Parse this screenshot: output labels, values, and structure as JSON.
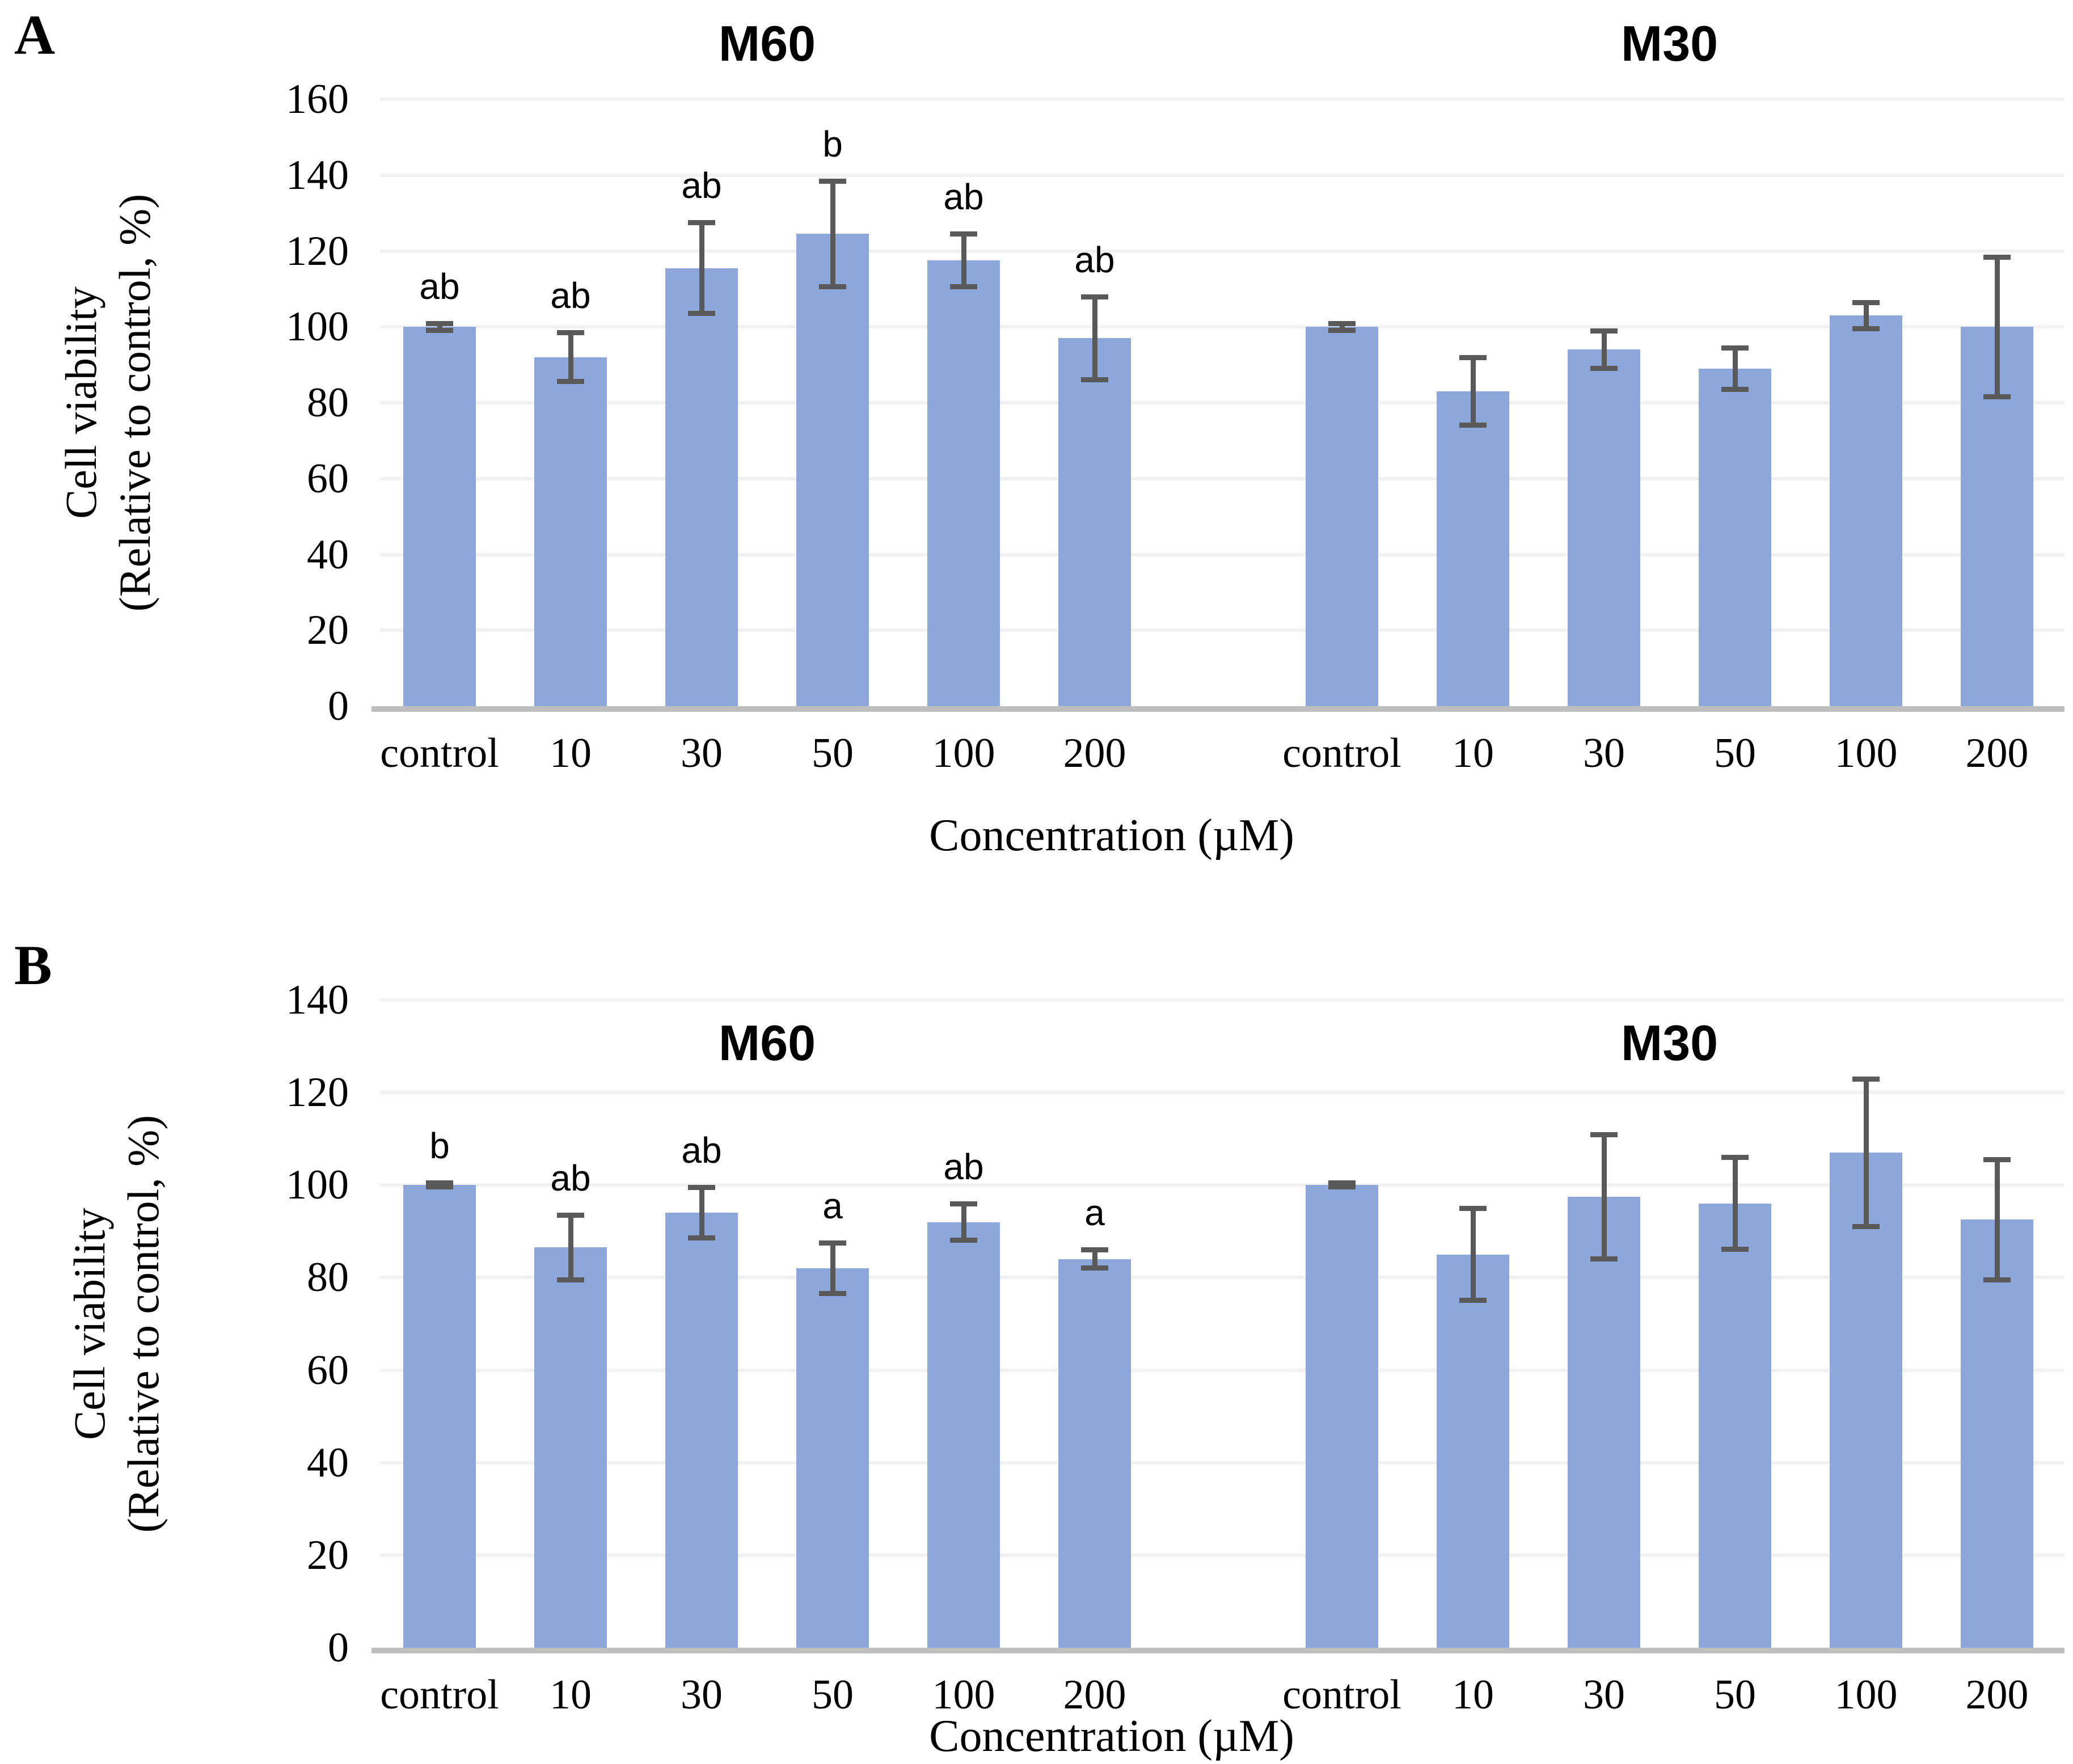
{
  "colors": {
    "bar": "#8DA7DB",
    "error_bar": "#595959",
    "gridline": "#F1F1F1",
    "axis_line": "#BFBFBF",
    "text": "#000000"
  },
  "chart_data": [
    {
      "type": "bar",
      "panel_label": "A",
      "ylabel_line1": "Cell viability",
      "ylabel_line2": "(Relative to control, %)",
      "xlabel": "Concentration (µM)",
      "ylim": [
        0,
        160
      ],
      "yticks": [
        0,
        20,
        40,
        60,
        80,
        100,
        120,
        140,
        160
      ],
      "grid": true,
      "categories": [
        "control",
        "10",
        "30",
        "50",
        "100",
        "200"
      ],
      "series": [
        {
          "name": "M60",
          "values": [
            100,
            92,
            115.5,
            124.5,
            117.5,
            97
          ],
          "errors": [
            1,
            6.5,
            12,
            14,
            7,
            11
          ],
          "letters": [
            "ab",
            "ab",
            "ab",
            "b",
            "ab",
            "ab"
          ]
        },
        {
          "name": "M30",
          "values": [
            100,
            83,
            94,
            89,
            103,
            100
          ],
          "errors": [
            1,
            9,
            5,
            5.5,
            3.5,
            18.5
          ],
          "letters": [
            "",
            "",
            "",
            "",
            "",
            ""
          ]
        }
      ]
    },
    {
      "type": "bar",
      "panel_label": "B",
      "ylabel_line1": "Cell viability",
      "ylabel_line2": "(Relative to control, %)",
      "xlabel": "Concentration (µM)",
      "ylim": [
        0,
        140
      ],
      "yticks": [
        0,
        20,
        40,
        60,
        80,
        100,
        120,
        140
      ],
      "grid": true,
      "categories": [
        "control",
        "10",
        "30",
        "50",
        "100",
        "200"
      ],
      "series": [
        {
          "name": "M60",
          "values": [
            100,
            86.5,
            94,
            82,
            92,
            84
          ],
          "errors": [
            0.5,
            7,
            5.5,
            5.5,
            4,
            2
          ],
          "letters": [
            "b",
            "ab",
            "ab",
            "a",
            "ab",
            "a"
          ]
        },
        {
          "name": "M30",
          "values": [
            100,
            85,
            97.5,
            96,
            107,
            92.5
          ],
          "errors": [
            0.5,
            10,
            13.5,
            10,
            16,
            13
          ],
          "letters": [
            "",
            "",
            "",
            "",
            "",
            ""
          ]
        }
      ]
    }
  ]
}
